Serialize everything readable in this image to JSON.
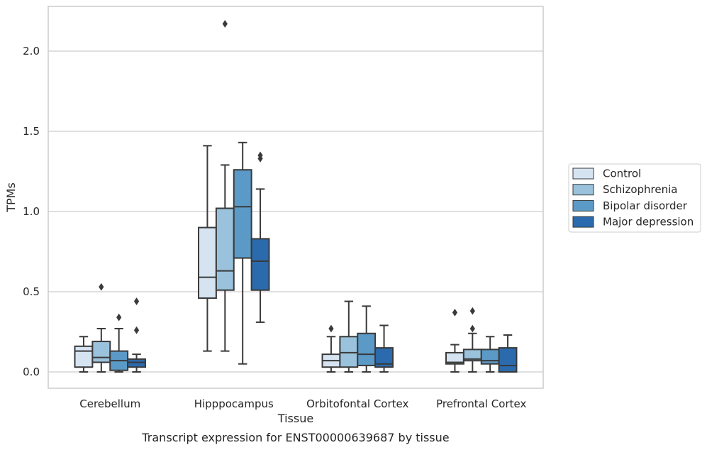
{
  "chart_data": {
    "type": "box",
    "xlabel": "Tissue",
    "ylabel": "TPMs",
    "caption": "Transcript expression for ENST00000639687 by tissue",
    "categories": [
      "Cerebellum",
      "Hipppocampus",
      "Orbitofontal Cortex",
      "Prefrontal Cortex"
    ],
    "ylim": [
      -0.1,
      2.3
    ],
    "yticks": [
      0.0,
      0.5,
      1.0,
      1.5,
      2.0
    ],
    "ytick_labels": [
      "0.0",
      "0.5",
      "1.0",
      "1.5",
      "2.0"
    ],
    "grid": "horizontal",
    "legend_position": "right",
    "series": [
      {
        "name": "Control",
        "color": "#d6e4f2",
        "boxes": [
          {
            "whislo": 0.0,
            "q1": 0.03,
            "med": 0.13,
            "q3": 0.16,
            "whishi": 0.22,
            "fliers": []
          },
          {
            "whislo": 0.13,
            "q1": 0.46,
            "med": 0.59,
            "q3": 0.9,
            "whishi": 1.41,
            "fliers": []
          },
          {
            "whislo": 0.0,
            "q1": 0.03,
            "med": 0.07,
            "q3": 0.11,
            "whishi": 0.22,
            "fliers": [
              0.27
            ]
          },
          {
            "whislo": 0.0,
            "q1": 0.05,
            "med": 0.06,
            "q3": 0.12,
            "whishi": 0.17,
            "fliers": [
              0.37
            ]
          }
        ]
      },
      {
        "name": "Schizophrenia",
        "color": "#9ac2dc",
        "boxes": [
          {
            "whislo": 0.0,
            "q1": 0.06,
            "med": 0.09,
            "q3": 0.19,
            "whishi": 0.27,
            "fliers": [
              0.53
            ]
          },
          {
            "whislo": 0.13,
            "q1": 0.51,
            "med": 0.63,
            "q3": 1.02,
            "whishi": 1.29,
            "fliers": [
              2.17
            ]
          },
          {
            "whislo": 0.0,
            "q1": 0.03,
            "med": 0.12,
            "q3": 0.22,
            "whishi": 0.44,
            "fliers": []
          },
          {
            "whislo": 0.0,
            "q1": 0.07,
            "med": 0.08,
            "q3": 0.14,
            "whishi": 0.24,
            "fliers": [
              0.27,
              0.38
            ]
          }
        ]
      },
      {
        "name": "Bipolar disorder",
        "color": "#5b9ac7",
        "boxes": [
          {
            "whislo": 0.0,
            "q1": 0.01,
            "med": 0.07,
            "q3": 0.13,
            "whishi": 0.27,
            "fliers": [
              0.34
            ]
          },
          {
            "whislo": 0.05,
            "q1": 0.71,
            "med": 1.03,
            "q3": 1.26,
            "whishi": 1.43,
            "fliers": []
          },
          {
            "whislo": 0.0,
            "q1": 0.04,
            "med": 0.11,
            "q3": 0.24,
            "whishi": 0.41,
            "fliers": []
          },
          {
            "whislo": 0.0,
            "q1": 0.05,
            "med": 0.07,
            "q3": 0.14,
            "whishi": 0.22,
            "fliers": []
          }
        ]
      },
      {
        "name": "Major depression",
        "color": "#2a6aad",
        "boxes": [
          {
            "whislo": 0.0,
            "q1": 0.03,
            "med": 0.06,
            "q3": 0.08,
            "whishi": 0.11,
            "fliers": [
              0.26,
              0.44
            ]
          },
          {
            "whislo": 0.31,
            "q1": 0.51,
            "med": 0.69,
            "q3": 0.83,
            "whishi": 1.14,
            "fliers": [
              1.33,
              1.35
            ]
          },
          {
            "whislo": 0.0,
            "q1": 0.03,
            "med": 0.05,
            "q3": 0.15,
            "whishi": 0.29,
            "fliers": []
          },
          {
            "whislo": 0.0,
            "q1": 0.0,
            "med": 0.04,
            "q3": 0.15,
            "whishi": 0.23,
            "fliers": []
          }
        ]
      }
    ]
  }
}
